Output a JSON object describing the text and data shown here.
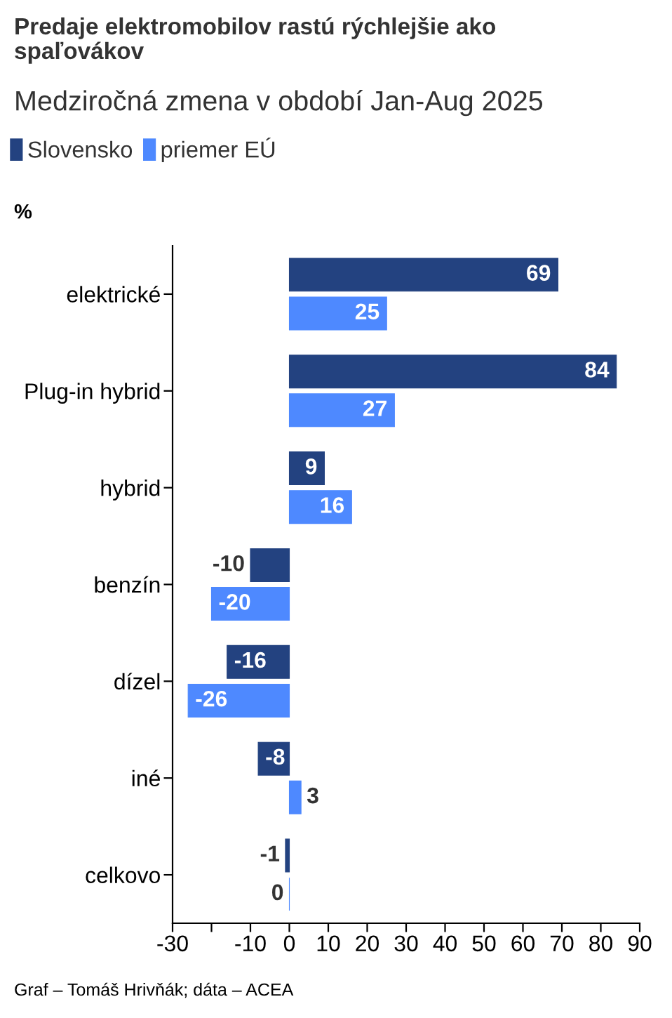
{
  "chart_data": {
    "type": "bar",
    "orientation": "horizontal",
    "title": "Predaje elektromobilov rastú rýchlejšie ako spaľovákov",
    "subtitle": "Medziročná zmena v období Jan-Aug 2025",
    "xlabel": "%",
    "categories": [
      "elektrické",
      "Plug-in hybrid",
      "hybrid",
      "benzín",
      "dízel",
      "iné",
      "celkovo"
    ],
    "series": [
      {
        "name": "Slovensko",
        "color": "#234280",
        "values": [
          69,
          84,
          9,
          -10,
          -16,
          -8,
          -1
        ]
      },
      {
        "name": "priemer EÚ",
        "color": "#4e89ff",
        "values": [
          25,
          27,
          16,
          -20,
          -26,
          3,
          0
        ]
      }
    ],
    "xlim": [
      -30,
      90
    ],
    "xticks": [
      -30,
      {
        "value": -20,
        "label": null
      },
      -10,
      0,
      10,
      20,
      30,
      40,
      50,
      60,
      70,
      80,
      90
    ],
    "data_labels": true,
    "legend": "top left",
    "grid": false,
    "annotations": [
      "Graf – Tomáš Hrivňák; dáta – ACEA"
    ]
  }
}
